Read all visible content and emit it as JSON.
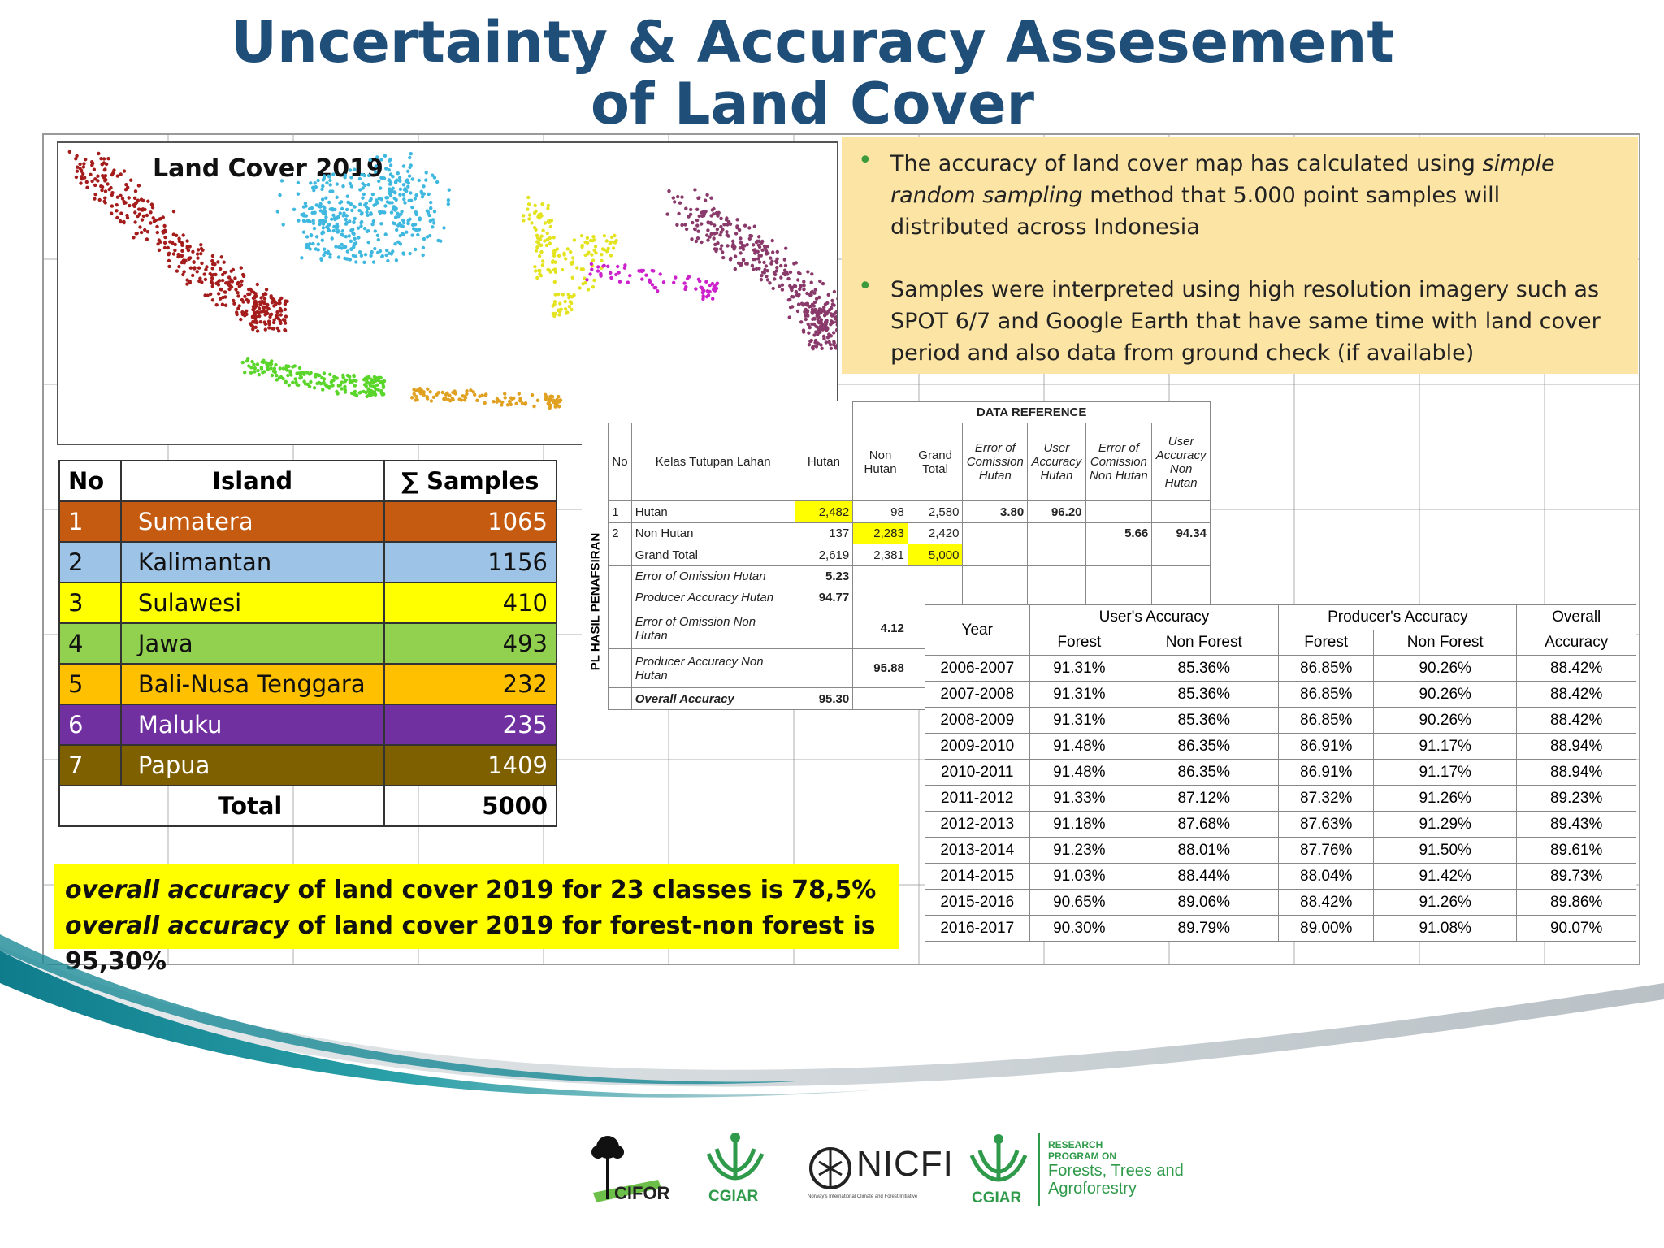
{
  "title_line1": "Uncertainty & Accuracy Assesement",
  "title_line2": "of Land Cover",
  "map": {
    "title": "Land Cover 2019"
  },
  "notes": [
    {
      "prefix": "The accuracy of land cover map has calculated using ",
      "emph": "simple random sampling",
      "suffix": " method that 5.000 point samples will distributed across Indonesia"
    },
    {
      "text": "Samples were interpreted using high resolution imagery such as SPOT 6/7 and Google Earth that have same time with land cover period and also data from ground check (if available)"
    }
  ],
  "island_table": {
    "headers": [
      "No",
      "Island",
      "∑ Samples"
    ],
    "rows": [
      {
        "no": "1",
        "island": "Sumatera",
        "samples": "1065",
        "color": "#c55a11"
      },
      {
        "no": "2",
        "island": "Kalimantan",
        "samples": "1156",
        "color": "#9dc3e6"
      },
      {
        "no": "3",
        "island": "Sulawesi",
        "samples": "410",
        "color": "#ffff00"
      },
      {
        "no": "4",
        "island": "Jawa",
        "samples": "493",
        "color": "#92d050"
      },
      {
        "no": "5",
        "island": "Bali-Nusa Tenggara",
        "samples": "232",
        "color": "#ffc000"
      },
      {
        "no": "6",
        "island": "Maluku",
        "samples": "235",
        "color": "#7030a0"
      },
      {
        "no": "7",
        "island": "Papua",
        "samples": "1409",
        "color": "#7f6000"
      }
    ],
    "total_label": "Total",
    "total_value": "5000"
  },
  "data_reference": {
    "title": "DATA REFERENCE",
    "side_label": "PL HASIL PENAFSIRAN",
    "headers": [
      "No",
      "Kelas Tutupan Lahan",
      "Hutan",
      "Non Hutan",
      "Grand Total",
      "Error of Comission Hutan",
      "User Accuracy Hutan",
      "Error of Comission Non Hutan",
      "User Accuracy Non Hutan"
    ],
    "r1": {
      "no": "1",
      "label": "Hutan",
      "hutan": "2,482",
      "non": "98",
      "total": "2,580",
      "eoc": "3.80",
      "ua": "96.20"
    },
    "r2": {
      "no": "2",
      "label": "Non Hutan",
      "hutan": "137",
      "non": "2,283",
      "total": "2,420",
      "eoc": "5.66",
      "ua": "94.34"
    },
    "r3": {
      "label": "Grand Total",
      "hutan": "2,619",
      "non": "2,381",
      "total": "5,000"
    },
    "r4": {
      "label": "Error of Omission Hutan",
      "v": "5.23"
    },
    "r5": {
      "label": "Producer Accuracy Hutan",
      "v": "94.77"
    },
    "r6": {
      "label": "Error of Omission Non Hutan",
      "v": "4.12"
    },
    "r7": {
      "label": "Producer Accuracy Non Hutan",
      "v": "95.88"
    },
    "r8": {
      "label": "Overall Accuracy",
      "v": "95.30"
    }
  },
  "year_table": {
    "h_year": "Year",
    "h_user": "User's Accuracy",
    "h_prod": "Producer's Accuracy",
    "h_overall1": "Overall",
    "h_overall2": "Accuracy",
    "h_forest": "Forest",
    "h_nonforest": "Non Forest",
    "rows": [
      [
        "2006-2007",
        "91.31%",
        "85.36%",
        "86.85%",
        "90.26%",
        "88.42%"
      ],
      [
        "2007-2008",
        "91.31%",
        "85.36%",
        "86.85%",
        "90.26%",
        "88.42%"
      ],
      [
        "2008-2009",
        "91.31%",
        "85.36%",
        "86.85%",
        "90.26%",
        "88.42%"
      ],
      [
        "2009-2010",
        "91.48%",
        "86.35%",
        "86.91%",
        "91.17%",
        "88.94%"
      ],
      [
        "2010-2011",
        "91.48%",
        "86.35%",
        "86.91%",
        "91.17%",
        "88.94%"
      ],
      [
        "2011-2012",
        "91.33%",
        "87.12%",
        "87.32%",
        "91.26%",
        "89.23%"
      ],
      [
        "2012-2013",
        "91.18%",
        "87.68%",
        "87.63%",
        "91.29%",
        "89.43%"
      ],
      [
        "2013-2014",
        "91.23%",
        "88.01%",
        "87.76%",
        "91.50%",
        "89.61%"
      ],
      [
        "2014-2015",
        "91.03%",
        "88.44%",
        "88.04%",
        "91.42%",
        "89.73%"
      ],
      [
        "2015-2016",
        "90.65%",
        "89.06%",
        "88.42%",
        "91.26%",
        "89.86%"
      ],
      [
        "2016-2017",
        "90.30%",
        "89.79%",
        "89.00%",
        "91.08%",
        "90.07%"
      ]
    ]
  },
  "highlight": {
    "line1_em": "overall accuracy",
    "line1_rest": " of land cover 2019 for 23 classes is 78,5%",
    "line2_em": "overall accuracy",
    "line2_rest": " of land cover 2019 for forest-non forest is 95,30%"
  },
  "logos": {
    "cifor": "CIFOR",
    "cgiar1": "CGIAR",
    "nicfi": "NICFI",
    "nicfi_sub": "Norway's International Climate and Forest Initiative",
    "cgiar2": "CGIAR",
    "rp_small": "RESEARCH PROGRAM ON",
    "rp_line1": "Forests, Trees and",
    "rp_line2": "Agroforestry"
  }
}
